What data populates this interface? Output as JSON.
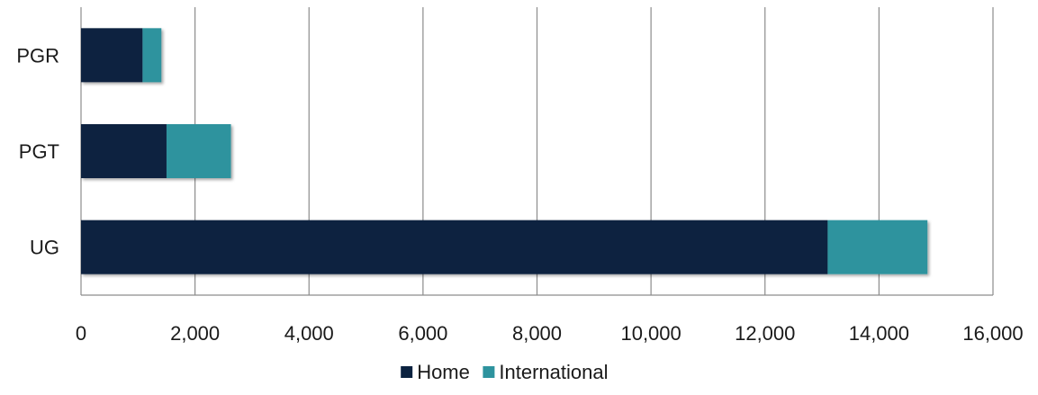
{
  "chart_data": {
    "type": "bar",
    "orientation": "horizontal",
    "stacked": true,
    "categories": [
      "PGR",
      "PGT",
      "UG"
    ],
    "series": [
      {
        "name": "Home",
        "values": [
          1080,
          1500,
          13100
        ],
        "color": "#0b2240"
      },
      {
        "name": "International",
        "values": [
          330,
          1130,
          1750
        ],
        "color": "#2e939e"
      }
    ],
    "xlim": [
      0,
      16000
    ],
    "xticks": [
      "0",
      "2,000",
      "4,000",
      "6,000",
      "8,000",
      "10,000",
      "12,000",
      "14,000",
      "16,000"
    ],
    "xtick_values": [
      0,
      2000,
      4000,
      6000,
      8000,
      10000,
      12000,
      14000,
      16000
    ],
    "grid": "vertical",
    "legend": "bottom-center",
    "title": "",
    "xlabel": "",
    "ylabel": ""
  }
}
